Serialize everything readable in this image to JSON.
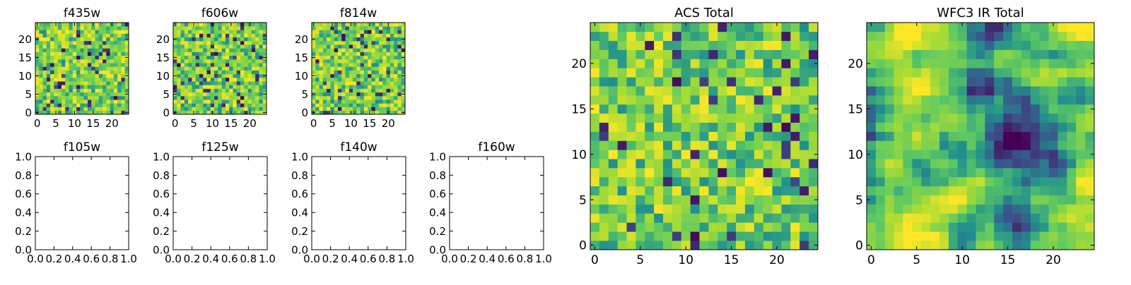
{
  "colors": {
    "background": "#ffffff",
    "axes": "#000000",
    "colormap": [
      "#440154",
      "#3b528b",
      "#21918c",
      "#5ec962",
      "#a5db36",
      "#fde725"
    ]
  },
  "chart_data": [
    {
      "type": "heatmap",
      "title": "f435w",
      "xlabel": "",
      "ylabel": "",
      "xlim": [
        -0.5,
        24.5
      ],
      "ylim": [
        -0.5,
        24.5
      ],
      "xticks": [
        "0",
        "5",
        "10",
        "15",
        "20"
      ],
      "yticks": [
        "0",
        "5",
        "10",
        "15",
        "20"
      ],
      "grid_size": [
        25,
        25
      ],
      "pattern": "noise",
      "seed": 11,
      "colormap": "viridis"
    },
    {
      "type": "heatmap",
      "title": "f606w",
      "xlabel": "",
      "ylabel": "",
      "xlim": [
        -0.5,
        24.5
      ],
      "ylim": [
        -0.5,
        24.5
      ],
      "xticks": [
        "0",
        "5",
        "10",
        "15",
        "20"
      ],
      "yticks": [
        "0",
        "5",
        "10",
        "15",
        "20"
      ],
      "grid_size": [
        25,
        25
      ],
      "pattern": "noise",
      "seed": 23,
      "colormap": "viridis"
    },
    {
      "type": "heatmap",
      "title": "f814w",
      "xlabel": "",
      "ylabel": "",
      "xlim": [
        -0.5,
        24.5
      ],
      "ylim": [
        -0.5,
        24.5
      ],
      "xticks": [
        "0",
        "5",
        "10",
        "15",
        "20"
      ],
      "yticks": [
        "0",
        "5",
        "10",
        "15",
        "20"
      ],
      "grid_size": [
        25,
        25
      ],
      "pattern": "noise",
      "seed": 37,
      "colormap": "viridis"
    },
    {
      "type": "empty",
      "title": "f105w",
      "xlim": [
        0,
        1
      ],
      "ylim": [
        0,
        1
      ],
      "xticks": [
        "0.0",
        "0.2",
        "0.4",
        "0.6",
        "0.8",
        "1.0"
      ],
      "yticks": [
        "0.0",
        "0.2",
        "0.4",
        "0.6",
        "0.8",
        "1.0"
      ]
    },
    {
      "type": "empty",
      "title": "f125w",
      "xlim": [
        0,
        1
      ],
      "ylim": [
        0,
        1
      ],
      "xticks": [
        "0.0",
        "0.2",
        "0.4",
        "0.6",
        "0.8",
        "1.0"
      ],
      "yticks": [
        "0.0",
        "0.2",
        "0.4",
        "0.6",
        "0.8",
        "1.0"
      ]
    },
    {
      "type": "empty",
      "title": "f140w",
      "xlim": [
        0,
        1
      ],
      "ylim": [
        0,
        1
      ],
      "xticks": [
        "0.0",
        "0.2",
        "0.4",
        "0.6",
        "0.8",
        "1.0"
      ],
      "yticks": [
        "0.0",
        "0.2",
        "0.4",
        "0.6",
        "0.8",
        "1.0"
      ]
    },
    {
      "type": "empty",
      "title": "f160w",
      "xlim": [
        0,
        1
      ],
      "ylim": [
        0,
        1
      ],
      "xticks": [
        "0.0",
        "0.2",
        "0.4",
        "0.6",
        "0.8",
        "1.0"
      ],
      "yticks": [
        "0.0",
        "0.2",
        "0.4",
        "0.6",
        "0.8",
        "1.0"
      ]
    },
    {
      "type": "heatmap",
      "title": "ACS Total",
      "xlabel": "",
      "ylabel": "",
      "xlim": [
        -0.5,
        24.5
      ],
      "ylim": [
        -0.5,
        24.5
      ],
      "xticks": [
        "0",
        "5",
        "10",
        "15",
        "20"
      ],
      "yticks": [
        "0",
        "5",
        "10",
        "15",
        "20"
      ],
      "grid_size": [
        25,
        25
      ],
      "pattern": "noise",
      "seed": 53,
      "colormap": "viridis"
    },
    {
      "type": "heatmap",
      "title": "WFC3 IR Total",
      "xlabel": "",
      "ylabel": "",
      "xlim": [
        -0.5,
        24.5
      ],
      "ylim": [
        -0.5,
        24.5
      ],
      "xticks": [
        "0",
        "5",
        "10",
        "15",
        "20"
      ],
      "yticks": [
        "0",
        "5",
        "10",
        "15",
        "20"
      ],
      "grid_size": [
        25,
        25
      ],
      "pattern": "smooth",
      "seed": 71,
      "colormap": "viridis"
    }
  ]
}
